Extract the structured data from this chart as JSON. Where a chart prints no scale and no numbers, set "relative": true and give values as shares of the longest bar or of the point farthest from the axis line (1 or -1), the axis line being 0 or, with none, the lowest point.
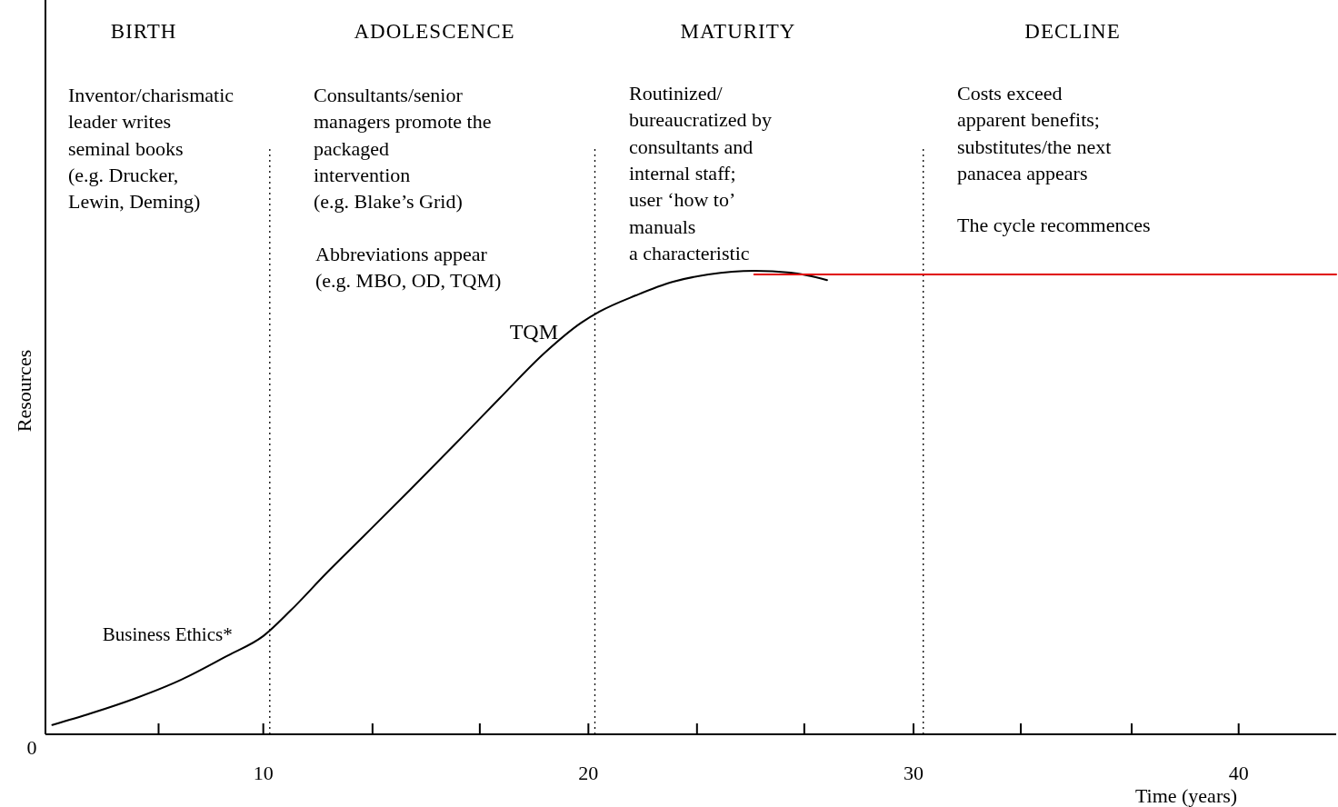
{
  "chart_data": {
    "type": "line",
    "relative": true,
    "xlabel": "Time (years)",
    "ylabel": "Resources",
    "xlim": [
      3.3,
      43
    ],
    "xticks": [
      {
        "value": 6.78,
        "label": null
      },
      10,
      {
        "value": 13.36,
        "label": null
      },
      {
        "value": 16.66,
        "label": null
      },
      20,
      {
        "value": 23.34,
        "label": null
      },
      {
        "value": 26.64,
        "label": null
      },
      30,
      {
        "value": 33.3,
        "label": null
      },
      {
        "value": 36.71,
        "label": null
      },
      40
    ],
    "series": [
      {
        "color": "#000000",
        "x": [
          3.51,
          4.69,
          6.08,
          7.48,
          8.88,
          10.0,
          10.84,
          11.96,
          13.08,
          14.48,
          15.87,
          17.27,
          18.67,
          19.78,
          20.34,
          21.46,
          22.58,
          23.69,
          25.1,
          26.22,
          27.34
        ],
        "values": [
          0.02,
          0.045,
          0.078,
          0.118,
          0.169,
          0.212,
          0.267,
          0.349,
          0.427,
          0.525,
          0.624,
          0.725,
          0.824,
          0.888,
          0.912,
          0.947,
          0.976,
          0.992,
          1.0,
          0.996,
          0.98
        ]
      },
      {
        "color": "#e00000",
        "x": [
          25.1,
          43
        ],
        "values": [
          0.992,
          0.992
        ]
      }
    ],
    "ref_lines": [
      {
        "axis": "x",
        "value": 10.2,
        "line_style": "dotted"
      },
      {
        "axis": "x",
        "value": 20.2,
        "line_style": "dotted"
      },
      {
        "axis": "x",
        "value": 30.3,
        "line_style": "dotted"
      }
    ],
    "annotations": [
      "BIRTH",
      "ADOLESCENCE",
      "MATURITY",
      "DECLINE",
      "Inventor/charismatic\nleader writes\nseminal books\n(e.g. Drucker,\nLewin, Deming)",
      "Consultants/senior\nmanagers promote the\npackaged\nintervention\n(e.g. Blake’s Grid)",
      "Abbreviations appear\n(e.g. MBO, OD, TQM)",
      "Routinized/\nbureaucratized by\nconsultants and\ninternal staff;\nuser ‘how to’\nmanuals\na characteristic",
      "Costs exceed\napparent benefits;\nsubstitutes/the next\npanacea appears",
      "The cycle recommences",
      {
        "text": "TQM",
        "x": 19.6,
        "y": 0.88
      },
      {
        "text": "Business Ethics*",
        "x": 10,
        "y": 0.212
      },
      "0"
    ]
  }
}
